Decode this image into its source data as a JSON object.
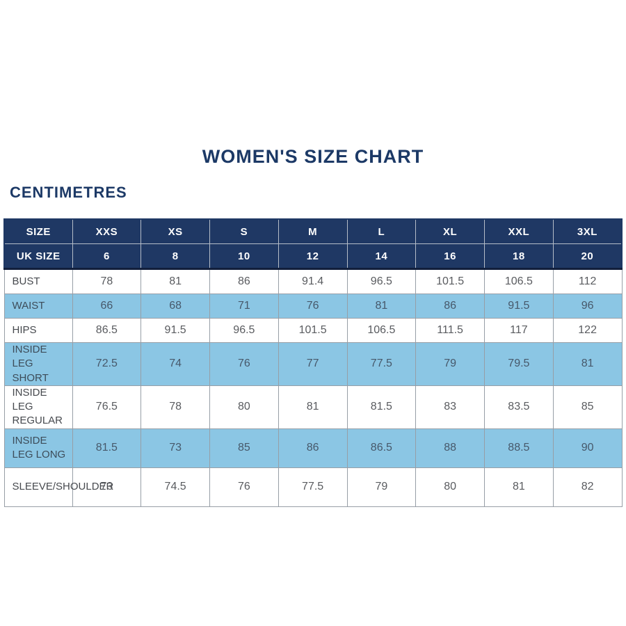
{
  "page": {
    "title": "WOMEN'S SIZE CHART",
    "units_label": "CENTIMETRES"
  },
  "colors": {
    "header_navy": "#1f3864",
    "row_light_blue": "#8bc6e4",
    "title_navy": "#1c3966",
    "body_text_gray": "#595b5f",
    "header_text": "#ffffff"
  },
  "chart_data": {
    "type": "table",
    "title": "WOMEN'S SIZE CHART",
    "units": "CENTIMETRES",
    "columns": [
      "SIZE",
      "XXS",
      "XS",
      "S",
      "M",
      "L",
      "XL",
      "XXL",
      "3XL"
    ],
    "uk_size_row": {
      "label": "UK SIZE",
      "values": [
        "6",
        "8",
        "10",
        "12",
        "14",
        "16",
        "18",
        "20"
      ]
    },
    "rows": [
      {
        "label": "BUST",
        "values": [
          "78",
          "81",
          "86",
          "91.4",
          "96.5",
          "101.5",
          "106.5",
          "112"
        ],
        "highlight": false,
        "tall": false
      },
      {
        "label": "WAIST",
        "values": [
          "66",
          "68",
          "71",
          "76",
          "81",
          "86",
          "91.5",
          "96"
        ],
        "highlight": true,
        "tall": false
      },
      {
        "label": "HIPS",
        "values": [
          "86.5",
          "91.5",
          "96.5",
          "101.5",
          "106.5",
          "111.5",
          "117",
          "122"
        ],
        "highlight": false,
        "tall": false
      },
      {
        "label": "INSIDE LEG SHORT",
        "values": [
          "72.5",
          "74",
          "76",
          "77",
          "77.5",
          "79",
          "79.5",
          "81"
        ],
        "highlight": true,
        "tall": true
      },
      {
        "label": "INSIDE LEG REGULAR",
        "values": [
          "76.5",
          "78",
          "80",
          "81",
          "81.5",
          "83",
          "83.5",
          "85"
        ],
        "highlight": false,
        "tall": true
      },
      {
        "label": "INSIDE LEG LONG",
        "values": [
          "81.5",
          "73",
          "85",
          "86",
          "86.5",
          "88",
          "88.5",
          "90"
        ],
        "highlight": true,
        "tall": true
      },
      {
        "label": "SLEEVE/SHOULDER",
        "values": [
          "73",
          "74.5",
          "76",
          "77.5",
          "79",
          "80",
          "81",
          "82"
        ],
        "highlight": false,
        "tall": true
      }
    ]
  }
}
